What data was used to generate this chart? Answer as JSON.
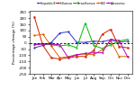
{
  "months": [
    "Jan",
    "Feb",
    "Mar",
    "Apr",
    "May",
    "Jun",
    "Jul",
    "Aug",
    "Sep",
    "Oct",
    "Nov",
    "Dec"
  ],
  "series": {
    "Hepatitis B": {
      "color": "#3333cc",
      "marker": "o",
      "values": [
        -40,
        -20,
        5,
        80,
        90,
        5,
        5,
        15,
        10,
        25,
        5,
        15
      ]
    },
    "Influenza": {
      "color": "#cc2200",
      "marker": "s",
      "values": [
        210,
        -20,
        -120,
        -130,
        -120,
        -110,
        -110,
        -60,
        70,
        110,
        -30,
        -40
      ]
    },
    "Parainfluenza": {
      "color": "#00bb00",
      "marker": "^",
      "values": [
        -10,
        -5,
        -15,
        -25,
        -15,
        -40,
        160,
        -20,
        -45,
        -15,
        15,
        30
      ]
    },
    "RSV": {
      "color": "#dd6600",
      "marker": "D",
      "values": [
        60,
        70,
        -25,
        -120,
        -110,
        -95,
        -90,
        -95,
        -55,
        15,
        -110,
        -110
      ]
    },
    "Adenovirus": {
      "color": "#bb00bb",
      "marker": "v",
      "values": [
        -15,
        -10,
        -10,
        -15,
        -120,
        -95,
        -85,
        -80,
        -80,
        30,
        20,
        -115
      ]
    }
  },
  "ylim": [
    -250,
    260
  ],
  "yticks": [
    -250,
    -200,
    -150,
    -100,
    -50,
    0,
    50,
    100,
    150,
    200,
    250
  ],
  "ytick_labels": [
    "-250",
    "-200",
    "-150",
    "-100",
    "-50",
    "0",
    "50",
    "100",
    "150",
    "200",
    "250"
  ],
  "ylabel": "Percentage change (%)",
  "hline_y": 0,
  "background_color": "#ffffff"
}
